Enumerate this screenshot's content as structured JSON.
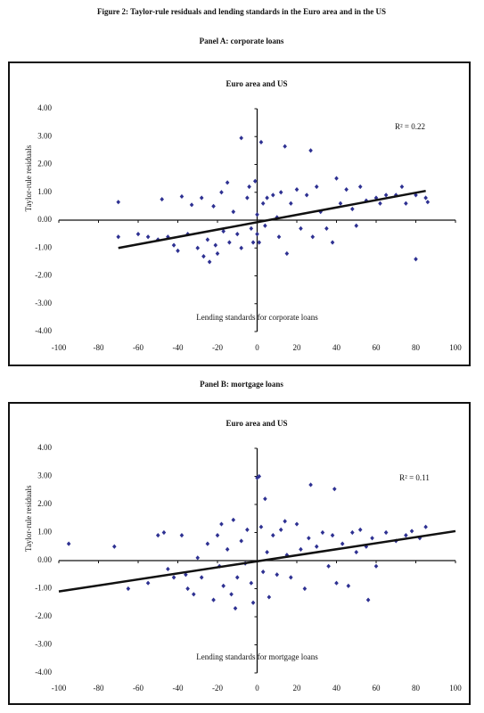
{
  "title": "Figure 2: Taylor-rule residuals and lending standards in the Euro area and in the US",
  "chart_data": [
    {
      "type": "scatter",
      "panel_title": "Panel A: corporate loans",
      "title": "Euro area and US",
      "x_label": "Lending standards for corporate loans",
      "y_label": "Taylor-rule residuals",
      "annotation": "R² = 0.22",
      "color": "#2e3192",
      "xlim": [
        -100,
        100
      ],
      "ylim": [
        -4,
        4
      ],
      "xticks": [
        -100,
        -80,
        -60,
        -40,
        -20,
        0,
        20,
        40,
        60,
        80,
        100
      ],
      "yticks": [
        {
          "value": 4,
          "label": "4.00"
        },
        {
          "value": 3,
          "label": "3.00"
        },
        {
          "value": 2,
          "label": "2.00"
        },
        {
          "value": 1,
          "label": "1.00"
        },
        {
          "value": 0,
          "label": "0.00"
        },
        {
          "value": -1,
          "label": "-1.00"
        },
        {
          "value": -2,
          "label": "-2.00"
        },
        {
          "value": -3,
          "label": "-3.00"
        },
        {
          "value": -4,
          "label": "-4.00"
        }
      ],
      "x": [
        -70,
        -70,
        -60,
        -55,
        -50,
        -48,
        -45,
        -42,
        -40,
        -38,
        -35,
        -33,
        -30,
        -28,
        -27,
        -25,
        -24,
        -22,
        -21,
        -20,
        -18,
        -17,
        -15,
        -14,
        -12,
        -10,
        -8,
        -8,
        -5,
        -4,
        -3,
        -2,
        -1,
        0,
        0,
        1,
        2,
        3,
        4,
        5,
        8,
        10,
        11,
        12,
        14,
        15,
        17,
        20,
        22,
        25,
        27,
        28,
        30,
        32,
        35,
        38,
        40,
        42,
        45,
        48,
        50,
        52,
        55,
        60,
        62,
        65,
        70,
        73,
        75,
        80,
        80,
        85,
        86
      ],
      "values": [
        0.65,
        -0.6,
        -0.5,
        -0.6,
        -0.7,
        0.75,
        -0.6,
        -0.9,
        -1.1,
        0.85,
        -0.5,
        0.55,
        -1.0,
        0.8,
        -1.3,
        -0.7,
        -1.5,
        0.5,
        -0.9,
        -1.2,
        1.0,
        -0.4,
        1.35,
        -0.8,
        0.3,
        -0.5,
        -1.0,
        2.95,
        0.8,
        1.2,
        -0.3,
        -0.8,
        1.4,
        -0.5,
        0.2,
        -0.8,
        2.8,
        0.6,
        -0.2,
        0.8,
        0.9,
        0.1,
        -0.6,
        1.0,
        2.65,
        -1.2,
        0.6,
        1.1,
        -0.3,
        0.9,
        2.5,
        -0.6,
        1.2,
        0.3,
        -0.3,
        -0.8,
        1.5,
        0.6,
        1.1,
        0.4,
        -0.2,
        1.2,
        0.7,
        0.8,
        0.6,
        0.9,
        0.9,
        1.2,
        0.6,
        0.9,
        -1.4,
        0.8,
        0.65
      ],
      "trendline": {
        "x": [
          -70,
          85
        ],
        "y": [
          -1.0,
          1.05
        ]
      }
    },
    {
      "type": "scatter",
      "panel_title": "Panel B: mortgage loans",
      "title": "Euro area and US",
      "x_label": "Lending standards for mortgage loans",
      "y_label": "Taylor-rule residuals",
      "annotation": "R² = 0.11",
      "color": "#2e3192",
      "xlim": [
        -100,
        100
      ],
      "ylim": [
        -4,
        4
      ],
      "xticks": [
        -100,
        -80,
        -60,
        -40,
        -20,
        0,
        20,
        40,
        60,
        80,
        100
      ],
      "yticks": [
        {
          "value": 4,
          "label": "4.00"
        },
        {
          "value": 3,
          "label": "3.00"
        },
        {
          "value": 2,
          "label": "2.00"
        },
        {
          "value": 1,
          "label": "1.00"
        },
        {
          "value": 0,
          "label": "0.00"
        },
        {
          "value": -1,
          "label": "-1.00"
        },
        {
          "value": -2,
          "label": "-2.00"
        },
        {
          "value": -3,
          "label": "-3.00"
        },
        {
          "value": -4,
          "label": "-4.00"
        }
      ],
      "x": [
        -95,
        -72,
        -65,
        -55,
        -50,
        -47,
        -45,
        -42,
        -38,
        -36,
        -35,
        -32,
        -30,
        -28,
        -25,
        -22,
        -20,
        -19,
        -18,
        -17,
        -15,
        -13,
        -12,
        -11,
        -10,
        -8,
        -6,
        -5,
        -3,
        -2,
        0,
        1,
        2,
        3,
        4,
        5,
        6,
        8,
        10,
        12,
        14,
        15,
        17,
        20,
        22,
        24,
        26,
        27,
        30,
        33,
        36,
        38,
        39,
        40,
        43,
        46,
        48,
        50,
        52,
        55,
        56,
        58,
        60,
        65,
        70,
        75,
        78,
        82,
        85
      ],
      "values": [
        0.6,
        0.5,
        -1.0,
        -0.8,
        0.9,
        1.0,
        -0.3,
        -0.6,
        0.9,
        -0.5,
        -1.0,
        -1.2,
        0.1,
        -0.6,
        0.6,
        -1.4,
        0.9,
        -0.2,
        1.3,
        -0.9,
        0.4,
        -1.2,
        1.45,
        -1.7,
        -0.6,
        0.7,
        -0.1,
        1.1,
        -0.8,
        -1.5,
        2.95,
        3.0,
        1.2,
        -0.4,
        2.2,
        0.3,
        -1.3,
        0.9,
        -0.5,
        1.1,
        1.4,
        0.2,
        -0.6,
        1.3,
        0.4,
        -1.0,
        0.8,
        2.7,
        0.5,
        1.0,
        -0.2,
        0.9,
        2.55,
        -0.8,
        0.6,
        -0.9,
        1.0,
        0.3,
        1.1,
        0.5,
        -1.4,
        0.8,
        -0.2,
        1.0,
        0.7,
        0.9,
        1.05,
        0.8,
        1.2
      ],
      "trendline": {
        "x": [
          -100,
          100
        ],
        "y": [
          -1.1,
          1.05
        ]
      }
    }
  ]
}
